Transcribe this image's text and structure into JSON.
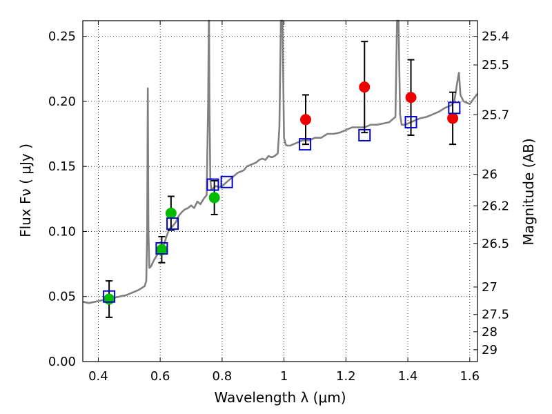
{
  "chart_data": {
    "type": "scatter",
    "xlabel": "Wavelength  λ (μm)",
    "ylabel": "Flux  Fν  ( μJy )",
    "y2label": "Magnitude (AB)",
    "xlim": [
      0.35,
      1.625
    ],
    "ylim": [
      0.0,
      0.262
    ],
    "grid": true,
    "x_ticks": [
      0.4,
      0.6,
      0.8,
      1.0,
      1.2,
      1.4,
      1.6
    ],
    "x_tick_labels": [
      "0.4",
      "0.6",
      "0.8",
      "1",
      "1.2",
      "1.4",
      "1.6"
    ],
    "y_ticks": [
      0.0,
      0.05,
      0.1,
      0.15,
      0.2,
      0.25
    ],
    "y_tick_labels": [
      "0.00",
      "0.05",
      "0.10",
      "0.15",
      "0.20",
      "0.25"
    ],
    "y2_ticks": [
      {
        "label": "25.4",
        "flux": 0.25
      },
      {
        "label": "25.5",
        "flux": 0.228
      },
      {
        "label": "25.7",
        "flux": 0.1897
      },
      {
        "label": "26",
        "flux": 0.1439
      },
      {
        "label": "26.2",
        "flux": 0.1197
      },
      {
        "label": "26.5",
        "flux": 0.0908
      },
      {
        "label": "27",
        "flux": 0.0573
      },
      {
        "label": "27.5",
        "flux": 0.0362
      },
      {
        "label": "28",
        "flux": 0.0229
      },
      {
        "label": "29",
        "flux": 0.0091
      }
    ],
    "colors": {
      "green": "#00bb00",
      "red": "#ee0000",
      "blue": "#0000cc",
      "spectrum": "#808080",
      "errorbar": "#000000"
    },
    "series": [
      {
        "kind": "spectrum",
        "x": [
          0.35,
          0.37,
          0.39,
          0.41,
          0.43,
          0.45,
          0.47,
          0.49,
          0.51,
          0.53,
          0.55,
          0.555,
          0.558,
          0.56,
          0.562,
          0.565,
          0.57,
          0.58,
          0.59,
          0.6,
          0.61,
          0.62,
          0.63,
          0.64,
          0.65,
          0.66,
          0.67,
          0.68,
          0.69,
          0.7,
          0.71,
          0.72,
          0.73,
          0.74,
          0.75,
          0.755,
          0.757,
          0.758,
          0.759,
          0.762,
          0.765,
          0.77,
          0.78,
          0.79,
          0.8,
          0.81,
          0.82,
          0.83,
          0.84,
          0.85,
          0.86,
          0.87,
          0.88,
          0.89,
          0.9,
          0.91,
          0.92,
          0.93,
          0.94,
          0.95,
          0.96,
          0.97,
          0.98,
          0.985,
          0.99,
          0.995,
          1.0,
          1.005,
          1.01,
          1.02,
          1.04,
          1.06,
          1.08,
          1.1,
          1.12,
          1.14,
          1.16,
          1.18,
          1.2,
          1.22,
          1.24,
          1.26,
          1.28,
          1.3,
          1.32,
          1.34,
          1.35,
          1.36,
          1.365,
          1.37,
          1.375,
          1.38,
          1.39,
          1.4,
          1.42,
          1.44,
          1.46,
          1.48,
          1.5,
          1.52,
          1.54,
          1.55,
          1.56,
          1.565,
          1.57,
          1.58,
          1.6,
          1.625
        ],
        "y": [
          0.046,
          0.045,
          0.046,
          0.047,
          0.048,
          0.049,
          0.05,
          0.051,
          0.053,
          0.055,
          0.058,
          0.062,
          0.1,
          0.21,
          0.1,
          0.072,
          0.073,
          0.078,
          0.082,
          0.086,
          0.088,
          0.096,
          0.102,
          0.104,
          0.107,
          0.112,
          0.115,
          0.117,
          0.118,
          0.12,
          0.118,
          0.123,
          0.121,
          0.125,
          0.128,
          0.2,
          0.262,
          0.262,
          0.2,
          0.14,
          0.132,
          0.133,
          0.135,
          0.134,
          0.135,
          0.137,
          0.139,
          0.141,
          0.143,
          0.145,
          0.146,
          0.147,
          0.15,
          0.151,
          0.152,
          0.153,
          0.155,
          0.156,
          0.155,
          0.158,
          0.157,
          0.158,
          0.16,
          0.18,
          0.262,
          0.262,
          0.172,
          0.167,
          0.166,
          0.166,
          0.168,
          0.17,
          0.17,
          0.172,
          0.172,
          0.175,
          0.175,
          0.176,
          0.178,
          0.18,
          0.18,
          0.18,
          0.182,
          0.182,
          0.183,
          0.184,
          0.186,
          0.188,
          0.262,
          0.262,
          0.19,
          0.182,
          0.182,
          0.183,
          0.185,
          0.187,
          0.188,
          0.19,
          0.192,
          0.195,
          0.197,
          0.2,
          0.215,
          0.222,
          0.205,
          0.2,
          0.198,
          0.206
        ]
      },
      {
        "kind": "points",
        "name": "green",
        "x": [
          0.435,
          0.605,
          0.635,
          0.775
        ],
        "y": [
          0.048,
          0.086,
          0.114,
          0.126
        ],
        "err": [
          0.014,
          0.01,
          0.013,
          0.013
        ]
      },
      {
        "kind": "points",
        "name": "red",
        "x": [
          1.07,
          1.26,
          1.41,
          1.545
        ],
        "y": [
          0.186,
          0.211,
          0.203,
          0.187
        ],
        "err": [
          0.019,
          0.035,
          0.029,
          0.02
        ]
      },
      {
        "kind": "model",
        "name": "blue",
        "x": [
          0.435,
          0.605,
          0.64,
          0.77,
          0.815,
          1.068,
          1.26,
          1.41,
          1.55
        ],
        "y": [
          0.05,
          0.087,
          0.106,
          0.136,
          0.138,
          0.167,
          0.174,
          0.184,
          0.195
        ]
      }
    ]
  }
}
